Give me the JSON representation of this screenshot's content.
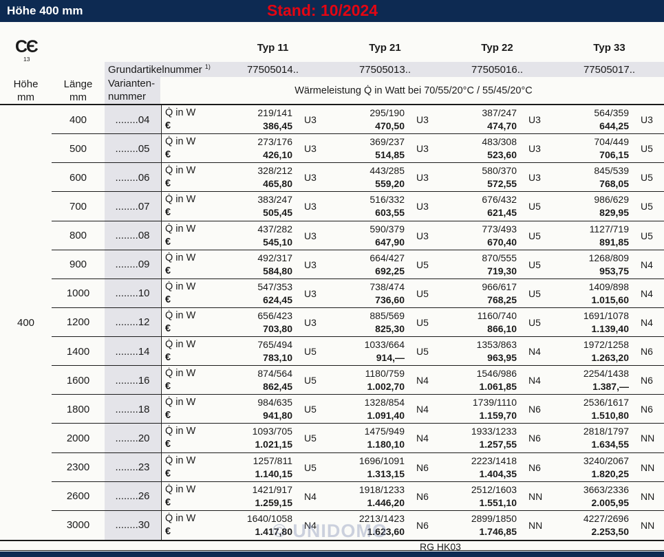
{
  "topbar": {
    "title": "Höhe 400 mm",
    "stand": "Stand: 10/2024"
  },
  "ce": {
    "mark": "CЄ",
    "number": "13"
  },
  "header": {
    "hoehe_label": "Höhe",
    "hoehe_unit": "mm",
    "laenge_label": "Länge",
    "laenge_unit": "mm",
    "grundartikel_label": "Grundartikelnummer",
    "grundartikel_sup": "1)",
    "varianten_line1": "Varianten-",
    "varianten_line2": "nummer",
    "waermeleistung": "Wärmeleistung Q̇ in Watt bei 70/55/20°C / 55/45/20°C",
    "types": [
      {
        "name": "Typ 11",
        "artikelnummer": "77505014.."
      },
      {
        "name": "Typ 21",
        "artikelnummer": "77505013.."
      },
      {
        "name": "Typ 22",
        "artikelnummer": "77505016.."
      },
      {
        "name": "Typ 33",
        "artikelnummer": "77505017.."
      }
    ]
  },
  "row_labels": {
    "watt": "Q̇ in W",
    "euro": "€"
  },
  "hoehe_value": "400",
  "rows": [
    {
      "laenge": "400",
      "variante": "........04",
      "cells": [
        {
          "watt": "219/141",
          "preis": "386,45",
          "code": "U3"
        },
        {
          "watt": "295/190",
          "preis": "470,50",
          "code": "U3"
        },
        {
          "watt": "387/247",
          "preis": "474,70",
          "code": "U3"
        },
        {
          "watt": "564/359",
          "preis": "644,25",
          "code": "U3"
        }
      ]
    },
    {
      "laenge": "500",
      "variante": "........05",
      "cells": [
        {
          "watt": "273/176",
          "preis": "426,10",
          "code": "U3"
        },
        {
          "watt": "369/237",
          "preis": "514,85",
          "code": "U3"
        },
        {
          "watt": "483/308",
          "preis": "523,60",
          "code": "U3"
        },
        {
          "watt": "704/449",
          "preis": "706,15",
          "code": "U5"
        }
      ]
    },
    {
      "laenge": "600",
      "variante": "........06",
      "cells": [
        {
          "watt": "328/212",
          "preis": "465,80",
          "code": "U3"
        },
        {
          "watt": "443/285",
          "preis": "559,20",
          "code": "U3"
        },
        {
          "watt": "580/370",
          "preis": "572,55",
          "code": "U3"
        },
        {
          "watt": "845/539",
          "preis": "768,05",
          "code": "U5"
        }
      ]
    },
    {
      "laenge": "700",
      "variante": "........07",
      "cells": [
        {
          "watt": "383/247",
          "preis": "505,45",
          "code": "U3"
        },
        {
          "watt": "516/332",
          "preis": "603,55",
          "code": "U3"
        },
        {
          "watt": "676/432",
          "preis": "621,45",
          "code": "U5"
        },
        {
          "watt": "986/629",
          "preis": "829,95",
          "code": "U5"
        }
      ]
    },
    {
      "laenge": "800",
      "variante": "........08",
      "cells": [
        {
          "watt": "437/282",
          "preis": "545,10",
          "code": "U3"
        },
        {
          "watt": "590/379",
          "preis": "647,90",
          "code": "U3"
        },
        {
          "watt": "773/493",
          "preis": "670,40",
          "code": "U5"
        },
        {
          "watt": "1127/719",
          "preis": "891,85",
          "code": "U5"
        }
      ]
    },
    {
      "laenge": "900",
      "variante": "........09",
      "cells": [
        {
          "watt": "492/317",
          "preis": "584,80",
          "code": "U3"
        },
        {
          "watt": "664/427",
          "preis": "692,25",
          "code": "U5"
        },
        {
          "watt": "870/555",
          "preis": "719,30",
          "code": "U5"
        },
        {
          "watt": "1268/809",
          "preis": "953,75",
          "code": "N4"
        }
      ]
    },
    {
      "laenge": "1000",
      "variante": "........10",
      "cells": [
        {
          "watt": "547/353",
          "preis": "624,45",
          "code": "U3"
        },
        {
          "watt": "738/474",
          "preis": "736,60",
          "code": "U5"
        },
        {
          "watt": "966/617",
          "preis": "768,25",
          "code": "U5"
        },
        {
          "watt": "1409/898",
          "preis": "1.015,60",
          "code": "N4"
        }
      ]
    },
    {
      "laenge": "1200",
      "variante": "........12",
      "cells": [
        {
          "watt": "656/423",
          "preis": "703,80",
          "code": "U3"
        },
        {
          "watt": "885/569",
          "preis": "825,30",
          "code": "U5"
        },
        {
          "watt": "1160/740",
          "preis": "866,10",
          "code": "U5"
        },
        {
          "watt": "1691/1078",
          "preis": "1.139,40",
          "code": "N4"
        }
      ]
    },
    {
      "laenge": "1400",
      "variante": "........14",
      "cells": [
        {
          "watt": "765/494",
          "preis": "783,10",
          "code": "U5"
        },
        {
          "watt": "1033/664",
          "preis": "914,—",
          "code": "U5"
        },
        {
          "watt": "1353/863",
          "preis": "963,95",
          "code": "N4"
        },
        {
          "watt": "1972/1258",
          "preis": "1.263,20",
          "code": "N6"
        }
      ]
    },
    {
      "laenge": "1600",
      "variante": "........16",
      "cells": [
        {
          "watt": "874/564",
          "preis": "862,45",
          "code": "U5"
        },
        {
          "watt": "1180/759",
          "preis": "1.002,70",
          "code": "N4"
        },
        {
          "watt": "1546/986",
          "preis": "1.061,85",
          "code": "N4"
        },
        {
          "watt": "2254/1438",
          "preis": "1.387,—",
          "code": "N6"
        }
      ]
    },
    {
      "laenge": "1800",
      "variante": "........18",
      "cells": [
        {
          "watt": "984/635",
          "preis": "941,80",
          "code": "U5"
        },
        {
          "watt": "1328/854",
          "preis": "1.091,40",
          "code": "N4"
        },
        {
          "watt": "1739/1110",
          "preis": "1.159,70",
          "code": "N6"
        },
        {
          "watt": "2536/1617",
          "preis": "1.510,80",
          "code": "N6"
        }
      ]
    },
    {
      "laenge": "2000",
      "variante": "........20",
      "cells": [
        {
          "watt": "1093/705",
          "preis": "1.021,15",
          "code": "U5"
        },
        {
          "watt": "1475/949",
          "preis": "1.180,10",
          "code": "N4"
        },
        {
          "watt": "1933/1233",
          "preis": "1.257,55",
          "code": "N6"
        },
        {
          "watt": "2818/1797",
          "preis": "1.634,55",
          "code": "NN"
        }
      ]
    },
    {
      "laenge": "2300",
      "variante": "........23",
      "cells": [
        {
          "watt": "1257/811",
          "preis": "1.140,15",
          "code": "U5"
        },
        {
          "watt": "1696/1091",
          "preis": "1.313,15",
          "code": "N6"
        },
        {
          "watt": "2223/1418",
          "preis": "1.404,35",
          "code": "N6"
        },
        {
          "watt": "3240/2067",
          "preis": "1.820,25",
          "code": "NN"
        }
      ]
    },
    {
      "laenge": "2600",
      "variante": "........26",
      "cells": [
        {
          "watt": "1421/917",
          "preis": "1.259,15",
          "code": "N4"
        },
        {
          "watt": "1918/1233",
          "preis": "1.446,20",
          "code": "N6"
        },
        {
          "watt": "2512/1603",
          "preis": "1.551,10",
          "code": "NN"
        },
        {
          "watt": "3663/2336",
          "preis": "2.005,95",
          "code": "NN"
        }
      ]
    },
    {
      "laenge": "3000",
      "variante": "........30",
      "cells": [
        {
          "watt": "1640/1058",
          "preis": "1.417,80",
          "code": "N4"
        },
        {
          "watt": "2213/1423",
          "preis": "1.623,60",
          "code": "N6"
        },
        {
          "watt": "2899/1850",
          "preis": "1.746,85",
          "code": "NN"
        },
        {
          "watt": "4227/2696",
          "preis": "2.253,50",
          "code": "NN"
        }
      ]
    }
  ],
  "footer": {
    "code": "RG HK03"
  },
  "watermark": "© UNIDOMO",
  "colors": {
    "navy": "#0d2a52",
    "red": "#e30613",
    "gray": "#e4e4e9",
    "line": "#1a1a1a"
  }
}
